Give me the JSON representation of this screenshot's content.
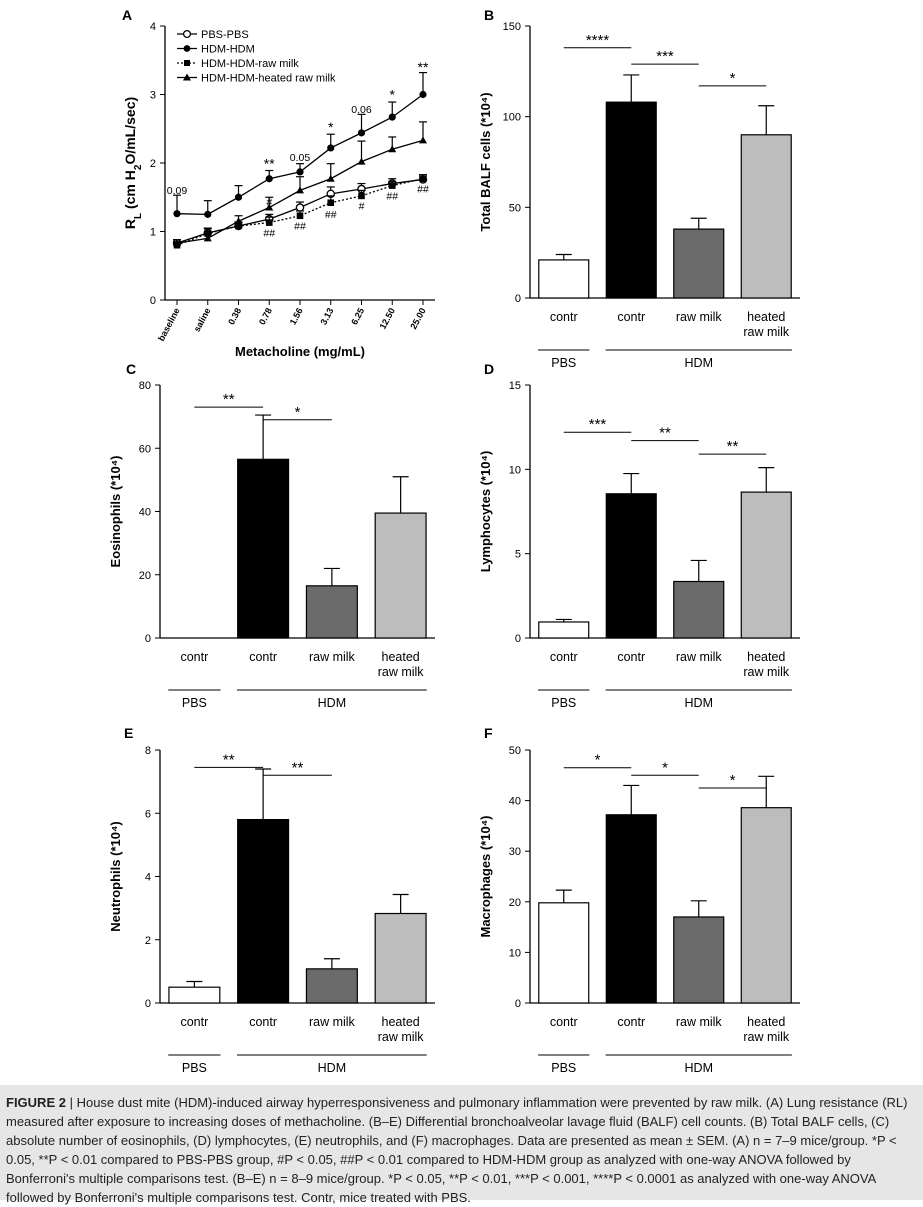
{
  "colors": {
    "pbs_contr": "#ffffff",
    "hdm_contr": "#000000",
    "raw_milk": "#6b6b6b",
    "heated_raw_milk": "#bdbdbd",
    "caption_bg": "#e6e6e6"
  },
  "chart_data": [
    {
      "panel": "A",
      "type": "line",
      "xlabel": "Metacholine (mg/mL)",
      "ylabel": "R_L (cm H2O/mL/sec)",
      "ylim": [
        0,
        4
      ],
      "yticks": [
        "0",
        "1",
        "2",
        "3",
        "4"
      ],
      "categories": [
        "baseline",
        "saline",
        "0.38",
        "0.78",
        "1.56",
        "3.13",
        "6.25",
        "12.50",
        "25.00"
      ],
      "legend_position": "top-left",
      "series": [
        {
          "name": "PBS-PBS",
          "marker": "open-circle",
          "line": "solid",
          "values": [
            0.83,
            0.98,
            1.08,
            1.18,
            1.35,
            1.55,
            1.62,
            1.7,
            1.76
          ],
          "err": [
            0.05,
            0.06,
            0.05,
            0.07,
            0.08,
            0.1,
            0.08,
            0.07,
            0.05
          ]
        },
        {
          "name": "HDM-HDM",
          "marker": "filled-circle",
          "line": "solid",
          "values": [
            1.26,
            1.25,
            1.5,
            1.77,
            1.87,
            2.22,
            2.44,
            2.67,
            3.0
          ],
          "err": [
            0.27,
            0.2,
            0.17,
            0.12,
            0.12,
            0.2,
            0.27,
            0.22,
            0.32
          ]
        },
        {
          "name": "HDM-HDM-raw milk",
          "marker": "filled-square",
          "line": "dotted",
          "values": [
            0.8,
            0.97,
            1.08,
            1.13,
            1.23,
            1.42,
            1.52,
            1.67,
            1.77
          ],
          "err": [
            0.05,
            0.08,
            0.06,
            0.08,
            0.07,
            0.1,
            0.08,
            0.06,
            0.06
          ]
        },
        {
          "name": "HDM-HDM-heated raw milk",
          "marker": "filled-triangle",
          "line": "solid",
          "values": [
            0.83,
            0.9,
            1.15,
            1.35,
            1.6,
            1.77,
            2.02,
            2.2,
            2.33
          ],
          "err": [
            0.05,
            0.07,
            0.08,
            0.15,
            0.2,
            0.22,
            0.3,
            0.18,
            0.27
          ]
        }
      ],
      "annotations": [
        {
          "category": "baseline",
          "text": "0.09",
          "y": 1.55
        },
        {
          "category": "0.78",
          "text": "**",
          "y": 1.92
        },
        {
          "category": "0.78",
          "text": "#",
          "y": 1.38
        },
        {
          "category": "0.78",
          "text": "##",
          "y": 0.93
        },
        {
          "category": "1.56",
          "text": "0.05",
          "y": 2.03
        },
        {
          "category": "1.56",
          "text": "##",
          "y": 1.03
        },
        {
          "category": "3.13",
          "text": "*",
          "y": 2.45
        },
        {
          "category": "3.13",
          "text": "##",
          "y": 1.2
        },
        {
          "category": "6.25",
          "text": "0.06",
          "y": 2.73
        },
        {
          "category": "6.25",
          "text": "#",
          "y": 1.32
        },
        {
          "category": "12.50",
          "text": "*",
          "y": 2.93
        },
        {
          "category": "12.50",
          "text": "##",
          "y": 1.47
        },
        {
          "category": "25.00",
          "text": "**",
          "y": 3.33
        },
        {
          "category": "25.00",
          "text": "##",
          "y": 1.57
        }
      ]
    },
    {
      "panel": "B",
      "type": "bar",
      "ylabel": "Total BALF cells (*10⁴)",
      "ylim": [
        0,
        150
      ],
      "yticks": [
        "0",
        "50",
        "100",
        "150"
      ],
      "categories": [
        "contr",
        "contr",
        "raw milk",
        "heated raw milk"
      ],
      "values": [
        21,
        108,
        38,
        90
      ],
      "err": [
        3,
        15,
        6,
        16
      ],
      "groups": [
        {
          "label": "PBS",
          "from": 0,
          "to": 0
        },
        {
          "label": "HDM",
          "from": 1,
          "to": 3
        }
      ],
      "significance": [
        {
          "from": 0,
          "to": 1,
          "text": "****",
          "y": 138
        },
        {
          "from": 1,
          "to": 2,
          "text": "***",
          "y": 129
        },
        {
          "from": 2,
          "to": 3,
          "text": "*",
          "y": 117
        }
      ]
    },
    {
      "panel": "C",
      "type": "bar",
      "ylabel": "Eosinophils (*10⁴)",
      "ylim": [
        0,
        80
      ],
      "yticks": [
        "0",
        "20",
        "40",
        "60",
        "80"
      ],
      "categories": [
        "contr",
        "contr",
        "raw milk",
        "heated raw milk"
      ],
      "values": [
        0,
        56.5,
        16.5,
        39.5
      ],
      "err": [
        0,
        14,
        5.5,
        11.5
      ],
      "groups": [
        {
          "label": "PBS",
          "from": 0,
          "to": 0
        },
        {
          "label": "HDM",
          "from": 1,
          "to": 3
        }
      ],
      "significance": [
        {
          "from": 0,
          "to": 1,
          "text": "**",
          "y": 73
        },
        {
          "from": 1,
          "to": 2,
          "text": "*",
          "y": 69
        }
      ]
    },
    {
      "panel": "D",
      "type": "bar",
      "ylabel": "Lymphocytes (*10⁴)",
      "ylim": [
        0,
        15
      ],
      "yticks": [
        "0",
        "5",
        "10",
        "15"
      ],
      "categories": [
        "contr",
        "contr",
        "raw milk",
        "heated raw milk"
      ],
      "values": [
        0.95,
        8.55,
        3.35,
        8.65
      ],
      "err": [
        0.15,
        1.2,
        1.25,
        1.45
      ],
      "groups": [
        {
          "label": "PBS",
          "from": 0,
          "to": 0
        },
        {
          "label": "HDM",
          "from": 1,
          "to": 3
        }
      ],
      "significance": [
        {
          "from": 0,
          "to": 1,
          "text": "***",
          "y": 12.2
        },
        {
          "from": 1,
          "to": 2,
          "text": "**",
          "y": 11.7
        },
        {
          "from": 2,
          "to": 3,
          "text": "**",
          "y": 10.9
        }
      ]
    },
    {
      "panel": "E",
      "type": "bar",
      "ylabel": "Neutrophils (*10⁴)",
      "ylim": [
        0,
        8
      ],
      "yticks": [
        "0",
        "2",
        "4",
        "6",
        "8"
      ],
      "categories": [
        "contr",
        "contr",
        "raw milk",
        "heated raw milk"
      ],
      "values": [
        0.5,
        5.8,
        1.08,
        2.83
      ],
      "err": [
        0.18,
        1.6,
        0.32,
        0.6
      ],
      "groups": [
        {
          "label": "PBS",
          "from": 0,
          "to": 0
        },
        {
          "label": "HDM",
          "from": 1,
          "to": 3
        }
      ],
      "significance": [
        {
          "from": 0,
          "to": 1,
          "text": "**",
          "y": 7.45
        },
        {
          "from": 1,
          "to": 2,
          "text": "**",
          "y": 7.2
        }
      ]
    },
    {
      "panel": "F",
      "type": "bar",
      "ylabel": "Macrophages (*10⁴)",
      "ylim": [
        0,
        50
      ],
      "yticks": [
        "0",
        "10",
        "20",
        "30",
        "40",
        "50"
      ],
      "categories": [
        "contr",
        "contr",
        "raw milk",
        "heated raw milk"
      ],
      "values": [
        19.8,
        37.2,
        17,
        38.6
      ],
      "err": [
        2.5,
        5.8,
        3.2,
        6.2
      ],
      "groups": [
        {
          "label": "PBS",
          "from": 0,
          "to": 0
        },
        {
          "label": "HDM",
          "from": 1,
          "to": 3
        }
      ],
      "significance": [
        {
          "from": 0,
          "to": 1,
          "text": "*",
          "y": 46.5
        },
        {
          "from": 1,
          "to": 2,
          "text": "*",
          "y": 45
        },
        {
          "from": 2,
          "to": 3,
          "text": "*",
          "y": 42.5
        }
      ]
    }
  ],
  "caption": {
    "label": "FIGURE 2",
    "text": " | House dust mite (HDM)-induced airway hyperresponsiveness and pulmonary inflammation were prevented by raw milk. (A) Lung resistance (RL) measured after exposure to increasing doses of methacholine. (B–E) Differential bronchoalveolar lavage fluid (BALF) cell counts. (B) Total BALF cells, (C) absolute number of eosinophils, (D) lymphocytes, (E) neutrophils, and (F) macrophages. Data are presented as mean ± SEM. (A) n = 7–9 mice/group. *P < 0.05, **P < 0.01 compared to PBS-PBS group, #P < 0.05, ##P < 0.01 compared to HDM-HDM group as analyzed with one-way ANOVA followed by Bonferroni's multiple comparisons test. (B–E) n = 8–9 mice/group. *P < 0.05, **P < 0.01, ***P < 0.001, ****P < 0.0001 as analyzed with one-way ANOVA followed by Bonferroni's multiple comparisons test. Contr, mice treated with PBS."
  }
}
